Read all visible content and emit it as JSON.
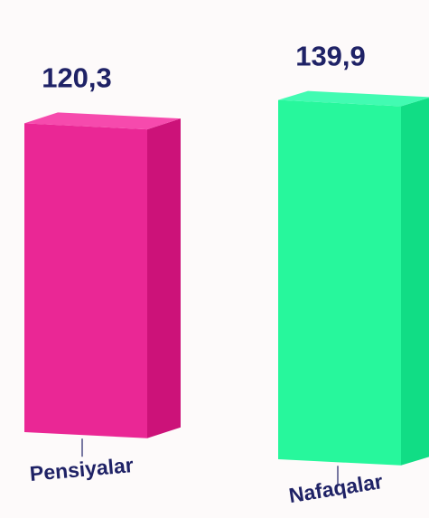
{
  "chart_data": {
    "type": "bar",
    "categories": [
      "Pensiyalar",
      "Nafaqalar"
    ],
    "values": [
      120.3,
      139.9
    ],
    "value_labels": [
      "120,3",
      "139,9"
    ],
    "title": "",
    "xlabel": "",
    "ylabel": "",
    "ylim": [
      0,
      139.9
    ],
    "grid": false,
    "legend": "none",
    "style": "3d-columns"
  },
  "colors": {
    "label_text": "#1f2266",
    "tick_line": "#1f2266",
    "background": "#fdfafa",
    "bars": [
      {
        "front": "#ea2795",
        "top": "#f64aad",
        "side": "#cc1279"
      },
      {
        "front": "#27f79c",
        "top": "#42fbb2",
        "side": "#11dd85"
      }
    ]
  }
}
